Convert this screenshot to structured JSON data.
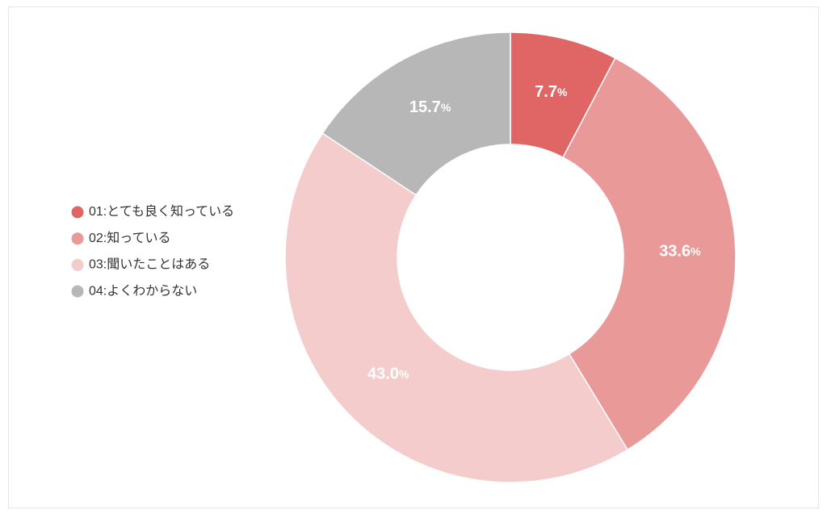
{
  "chart_data": {
    "type": "donut",
    "categories": [
      "01:とても良く知っている",
      "02:知っている",
      "03:聞いたことはある",
      "04:よくわからない"
    ],
    "values": [
      7.7,
      33.6,
      43.0,
      15.7
    ],
    "value_labels": [
      "7.7%",
      "33.6%",
      "43.0%",
      "15.7%"
    ],
    "colors": [
      "#e06666",
      "#ea9999",
      "#f4cccc",
      "#b7b7b7"
    ],
    "legend": "left"
  }
}
